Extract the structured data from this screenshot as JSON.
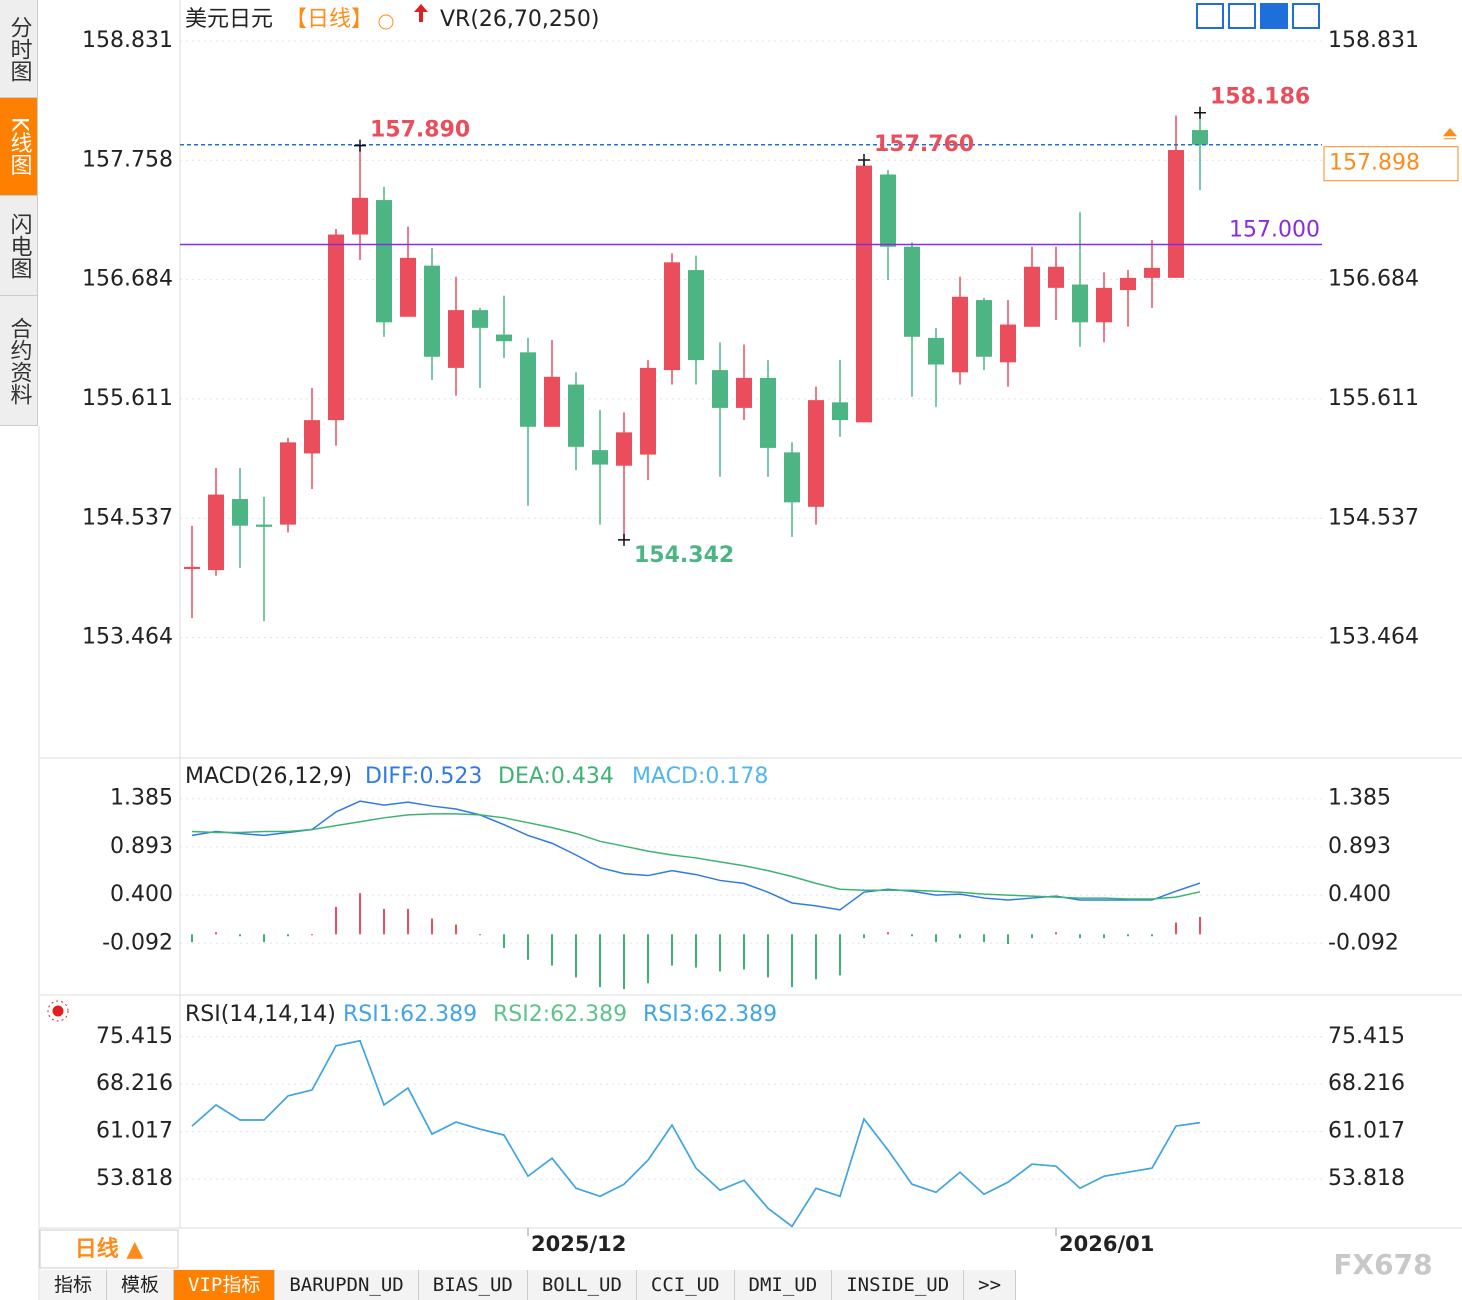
{
  "sidebar": {
    "tabs": [
      "分时图",
      "K线图",
      "闪电图",
      "合约资料"
    ],
    "active": 1
  },
  "chart_data": [
    {
      "type": "candlestick",
      "title": "美元日元",
      "period": "【日线】",
      "indicator": "VR(26,70,250)",
      "categories": [
        null,
        null,
        null,
        null,
        null,
        null,
        null,
        null,
        null,
        null,
        null,
        null,
        null,
        null,
        "2025/12",
        null,
        null,
        null,
        null,
        null,
        null,
        null,
        null,
        null,
        null,
        null,
        null,
        null,
        null,
        null,
        null,
        null,
        null,
        null,
        null,
        null,
        "2026/01",
        null,
        null,
        null,
        null,
        null,
        null
      ],
      "candles": {
        "open": [
          154.08,
          154.07,
          154.71,
          154.48,
          154.48,
          155.12,
          155.42,
          157.09,
          157.4,
          156.35,
          156.81,
          155.89,
          156.41,
          156.19,
          156.03,
          155.36,
          155.74,
          155.15,
          155.01,
          155.11,
          155.87,
          156.77,
          155.87,
          155.53,
          155.8,
          155.13,
          154.64,
          155.58,
          155.4,
          157.63,
          156.98,
          156.16,
          155.85,
          156.5,
          155.94,
          156.26,
          156.61,
          156.64,
          156.3,
          156.59,
          156.7,
          156.7,
          158.03
        ],
        "high": [
          154.47,
          154.99,
          154.99,
          154.73,
          155.26,
          155.71,
          157.14,
          157.89,
          157.52,
          157.16,
          156.97,
          156.71,
          156.43,
          156.54,
          156.16,
          156.14,
          155.85,
          155.51,
          155.49,
          155.96,
          156.92,
          156.9,
          156.12,
          156.1,
          155.96,
          155.22,
          155.72,
          155.96,
          157.76,
          157.67,
          157.02,
          156.25,
          156.71,
          156.52,
          156.5,
          156.98,
          156.98,
          157.29,
          156.75,
          156.77,
          157.04,
          158.16,
          158.186
        ],
        "low": [
          153.64,
          154.02,
          154.09,
          153.61,
          154.41,
          154.8,
          155.19,
          156.86,
          156.17,
          156.35,
          155.78,
          155.64,
          155.71,
          155.98,
          154.65,
          155.36,
          154.97,
          154.48,
          154.342,
          154.88,
          155.74,
          155.74,
          154.91,
          155.42,
          154.91,
          154.37,
          154.48,
          155.27,
          155.4,
          156.68,
          155.63,
          155.54,
          155.74,
          155.87,
          155.72,
          156.26,
          156.32,
          156.08,
          156.12,
          156.26,
          156.43,
          156.7,
          157.49
        ],
        "close": [
          154.1,
          154.75,
          154.47,
          154.46,
          155.22,
          155.42,
          157.09,
          157.42,
          156.3,
          156.88,
          155.99,
          156.41,
          156.25,
          156.13,
          155.36,
          155.81,
          155.18,
          155.02,
          155.31,
          155.89,
          156.84,
          155.96,
          155.53,
          155.8,
          155.17,
          154.68,
          155.6,
          155.42,
          157.71,
          156.98,
          156.17,
          155.92,
          156.53,
          155.99,
          156.28,
          156.8,
          156.8,
          156.3,
          156.61,
          156.7,
          156.79,
          157.85,
          157.898
        ]
      },
      "up_color": "#ea4d5c",
      "down_color": "#4db583",
      "ylim": [
        152.38,
        159.2
      ],
      "yticks": [
        158.831,
        157.758,
        156.684,
        155.611,
        154.537,
        153.464
      ],
      "grid": true,
      "extremes": [
        {
          "label": "157.890",
          "index": 7,
          "field": "high"
        },
        {
          "label": "157.760",
          "index": 28,
          "field": "high"
        },
        {
          "label": "158.186",
          "index": 42,
          "field": "high"
        },
        {
          "label": "154.342",
          "index": 18,
          "field": "low"
        }
      ],
      "last_price": {
        "value": 157.898,
        "color": "#ff8c1a",
        "line_color": "#1e6fd9"
      },
      "level_line": {
        "value": 157,
        "label": "157.000",
        "color": "#8a2be2"
      }
    },
    {
      "type": "line",
      "title": "MACD(26,12,9)",
      "ylim": [
        -0.6,
        1.75
      ],
      "yticks": [
        1.385,
        0.893,
        {
          "value": 0.4,
          "label": "0.400"
        },
        -0.092
      ],
      "series": [
        {
          "name": "DIFF:0.523",
          "color": "#2f7ae5",
          "values": [
            1.01,
            1.05,
            1.03,
            1.01,
            1.04,
            1.07,
            1.25,
            1.36,
            1.32,
            1.35,
            1.31,
            1.28,
            1.22,
            1.12,
            1.01,
            0.93,
            0.81,
            0.68,
            0.62,
            0.6,
            0.65,
            0.61,
            0.55,
            0.52,
            0.43,
            0.32,
            0.29,
            0.25,
            0.43,
            0.46,
            0.44,
            0.4,
            0.41,
            0.37,
            0.35,
            0.37,
            0.39,
            0.35,
            0.35,
            0.35,
            0.35,
            0.44,
            0.523
          ]
        },
        {
          "name": "DEA:0.434",
          "color": "#3cb371",
          "values": [
            1.05,
            1.04,
            1.04,
            1.05,
            1.05,
            1.07,
            1.11,
            1.15,
            1.19,
            1.22,
            1.23,
            1.23,
            1.22,
            1.19,
            1.14,
            1.09,
            1.03,
            0.95,
            0.9,
            0.85,
            0.81,
            0.78,
            0.74,
            0.7,
            0.65,
            0.59,
            0.52,
            0.46,
            0.45,
            0.45,
            0.45,
            0.44,
            0.43,
            0.41,
            0.4,
            0.39,
            0.38,
            0.37,
            0.37,
            0.36,
            0.36,
            0.38,
            0.434
          ]
        },
        {
          "name": "MACD:0.178",
          "type": "histogram",
          "color": "#52b5f0",
          "up_color": "#ea4d5c",
          "down_color": "#3cb371",
          "values": [
            -0.08,
            0.02,
            -0.02,
            -0.08,
            -0.02,
            0,
            0.28,
            0.42,
            0.26,
            0.26,
            0.16,
            0.1,
            0,
            -0.14,
            -0.26,
            -0.32,
            -0.44,
            -0.54,
            -0.56,
            -0.5,
            -0.32,
            -0.34,
            -0.38,
            -0.36,
            -0.44,
            -0.54,
            -0.46,
            -0.42,
            -0.04,
            0.02,
            -0.02,
            -0.08,
            -0.04,
            -0.08,
            -0.1,
            -0.04,
            0.02,
            -0.04,
            -0.04,
            -0.02,
            -0.02,
            0.12,
            0.178
          ]
        }
      ]
    },
    {
      "type": "line",
      "title": "RSI(14,14,14)",
      "ylim": [
        46.4,
        81
      ],
      "yticks": [
        75.415,
        68.216,
        61.017,
        53.818
      ],
      "series": [
        {
          "name": "RSI1:62.389",
          "color": "#3fa4e8",
          "values": [
            61.87,
            65.07,
            62.78,
            62.78,
            66.44,
            67.35,
            74.05,
            74.81,
            65.07,
            67.65,
            60.65,
            62.48,
            61.41,
            60.5,
            54.26,
            57.0,
            52.43,
            51.21,
            53.04,
            56.69,
            62.02,
            55.48,
            52.13,
            53.65,
            49.39,
            46.65,
            52.43,
            51.21,
            62.94,
            58.22,
            53.04,
            51.82,
            54.87,
            51.52,
            53.35,
            56.09,
            55.78,
            52.43,
            54.26,
            54.87,
            55.48,
            61.87,
            62.389
          ]
        },
        {
          "name": "RSI2:62.389",
          "color": "#5cc48a",
          "values": [
            61.87,
            65.07,
            62.78,
            62.78,
            66.44,
            67.35,
            74.05,
            74.81,
            65.07,
            67.65,
            60.65,
            62.48,
            61.41,
            60.5,
            54.26,
            57.0,
            52.43,
            51.21,
            53.04,
            56.69,
            62.02,
            55.48,
            52.13,
            53.65,
            49.39,
            46.65,
            52.43,
            51.21,
            62.94,
            58.22,
            53.04,
            51.82,
            54.87,
            51.52,
            53.35,
            56.09,
            55.78,
            52.43,
            54.26,
            54.87,
            55.48,
            61.87,
            62.389
          ]
        },
        {
          "name": "RSI3:62.389",
          "color": "#3fa4e8",
          "values": [
            61.87,
            65.07,
            62.78,
            62.78,
            66.44,
            67.35,
            74.05,
            74.81,
            65.07,
            67.65,
            60.65,
            62.48,
            61.41,
            60.5,
            54.26,
            57.0,
            52.43,
            51.21,
            53.04,
            56.69,
            62.02,
            55.48,
            52.13,
            53.65,
            49.39,
            46.65,
            52.43,
            51.21,
            62.94,
            58.22,
            53.04,
            51.82,
            54.87,
            51.52,
            53.35,
            56.09,
            55.78,
            52.43,
            54.26,
            54.87,
            55.48,
            61.87,
            62.389
          ]
        }
      ]
    }
  ],
  "period_button": "日线 ▲",
  "bottom_tabs": {
    "tabs": [
      "指标",
      "模板",
      "VIP指标",
      "BARUPDN_UD",
      "BIAS_UD",
      "BOLL_UD",
      "CCI_UD",
      "DMI_UD",
      "INSIDE_UD",
      ">>"
    ],
    "active": 2
  },
  "watermark": "FX678"
}
